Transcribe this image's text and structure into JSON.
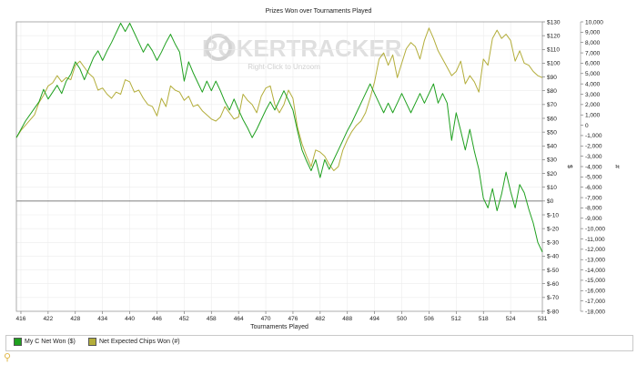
{
  "chart_data": {
    "type": "line",
    "title": "Prizes Won over Tournaments Played",
    "xlabel": "Tournaments Played",
    "ylabel_left": "$",
    "ylabel_right": "#",
    "watermark": {
      "brand": "POKERTRACKER",
      "hint": "Right-Click to Unzoom"
    },
    "x_ticks": [
      416,
      422,
      428,
      434,
      440,
      446,
      452,
      458,
      464,
      470,
      476,
      482,
      488,
      494,
      500,
      506,
      512,
      518,
      524,
      531
    ],
    "xlim": [
      415,
      531
    ],
    "y_left_ticks": [
      "$130",
      "$120",
      "$110",
      "$100",
      "$90",
      "$80",
      "$70",
      "$60",
      "$50",
      "$40",
      "$30",
      "$20",
      "$10",
      "$0",
      "$-10",
      "$-20",
      "$-30",
      "$-40",
      "$-50",
      "$-60",
      "$-70",
      "$-80"
    ],
    "y_left_range": [
      -80,
      130
    ],
    "y_right_ticks": [
      "10,000",
      "9,000",
      "8,000",
      "7,000",
      "6,000",
      "5,000",
      "4,000",
      "3,000",
      "2,000",
      "1,000",
      "0",
      "-1,000",
      "-2,000",
      "-3,000",
      "-4,000",
      "-5,000",
      "-6,000",
      "-7,000",
      "-8,000",
      "-9,000",
      "-10,000",
      "-11,000",
      "-12,000",
      "-13,000",
      "-14,000",
      "-15,000",
      "-16,000",
      "-17,000",
      "-18,000"
    ],
    "y_right_range": [
      -18000,
      10000
    ],
    "grid": true,
    "legend_placement": "bottom",
    "series": [
      {
        "name": "My C Net Won ($)",
        "axis": "left",
        "color": "#1fa01f",
        "points": [
          [
            415,
            46
          ],
          [
            417,
            58
          ],
          [
            420,
            72
          ],
          [
            421,
            81
          ],
          [
            422,
            74
          ],
          [
            423,
            79
          ],
          [
            424,
            84
          ],
          [
            425,
            78
          ],
          [
            426,
            87
          ],
          [
            427,
            92
          ],
          [
            428,
            101
          ],
          [
            429,
            96
          ],
          [
            430,
            88
          ],
          [
            431,
            96
          ],
          [
            432,
            104
          ],
          [
            433,
            109
          ],
          [
            434,
            102
          ],
          [
            435,
            109
          ],
          [
            436,
            115
          ],
          [
            437,
            122
          ],
          [
            438,
            129
          ],
          [
            439,
            123
          ],
          [
            440,
            129
          ],
          [
            441,
            122
          ],
          [
            442,
            115
          ],
          [
            443,
            108
          ],
          [
            444,
            114
          ],
          [
            445,
            109
          ],
          [
            446,
            102
          ],
          [
            447,
            108
          ],
          [
            448,
            115
          ],
          [
            449,
            121
          ],
          [
            450,
            114
          ],
          [
            451,
            108
          ],
          [
            452,
            87
          ],
          [
            453,
            101
          ],
          [
            454,
            93
          ],
          [
            455,
            86
          ],
          [
            456,
            79
          ],
          [
            457,
            87
          ],
          [
            458,
            80
          ],
          [
            459,
            87
          ],
          [
            460,
            80
          ],
          [
            461,
            72
          ],
          [
            462,
            66
          ],
          [
            463,
            74
          ],
          [
            464,
            66
          ],
          [
            465,
            59
          ],
          [
            466,
            53
          ],
          [
            467,
            46
          ],
          [
            468,
            52
          ],
          [
            469,
            59
          ],
          [
            470,
            66
          ],
          [
            471,
            72
          ],
          [
            472,
            66
          ],
          [
            473,
            73
          ],
          [
            474,
            80
          ],
          [
            475,
            73
          ],
          [
            476,
            66
          ],
          [
            477,
            51
          ],
          [
            478,
            37
          ],
          [
            479,
            29
          ],
          [
            480,
            22
          ],
          [
            481,
            30
          ],
          [
            482,
            17
          ],
          [
            483,
            30
          ],
          [
            484,
            23
          ],
          [
            485,
            30
          ],
          [
            486,
            37
          ],
          [
            487,
            44
          ],
          [
            488,
            51
          ],
          [
            489,
            57
          ],
          [
            490,
            64
          ],
          [
            491,
            71
          ],
          [
            492,
            78
          ],
          [
            493,
            85
          ],
          [
            494,
            78
          ],
          [
            495,
            71
          ],
          [
            496,
            64
          ],
          [
            497,
            71
          ],
          [
            498,
            64
          ],
          [
            499,
            71
          ],
          [
            500,
            78
          ],
          [
            501,
            71
          ],
          [
            502,
            64
          ],
          [
            503,
            71
          ],
          [
            504,
            78
          ],
          [
            505,
            71
          ],
          [
            506,
            78
          ],
          [
            507,
            85
          ],
          [
            508,
            71
          ],
          [
            509,
            78
          ],
          [
            510,
            71
          ],
          [
            511,
            44
          ],
          [
            512,
            64
          ],
          [
            513,
            51
          ],
          [
            514,
            37
          ],
          [
            515,
            52
          ],
          [
            516,
            36
          ],
          [
            517,
            23
          ],
          [
            518,
            2
          ],
          [
            519,
            -5
          ],
          [
            520,
            9
          ],
          [
            521,
            -7
          ],
          [
            522,
            5
          ],
          [
            523,
            21
          ],
          [
            524,
            7
          ],
          [
            525,
            -5
          ],
          [
            526,
            12
          ],
          [
            527,
            6
          ],
          [
            528,
            -6
          ],
          [
            529,
            -16
          ],
          [
            530,
            -30
          ],
          [
            531,
            -37
          ]
        ]
      },
      {
        "name": "Net Expected Chips Won (#)",
        "axis": "right",
        "color": "#b3ad3a",
        "points": [
          [
            415,
            -1200
          ],
          [
            416,
            -500
          ],
          [
            417,
            0
          ],
          [
            418,
            500
          ],
          [
            419,
            1000
          ],
          [
            420,
            2200
          ],
          [
            421,
            2900
          ],
          [
            422,
            3800
          ],
          [
            423,
            4100
          ],
          [
            424,
            4800
          ],
          [
            425,
            4200
          ],
          [
            426,
            4600
          ],
          [
            427,
            4400
          ],
          [
            428,
            5800
          ],
          [
            429,
            6200
          ],
          [
            430,
            5600
          ],
          [
            431,
            5000
          ],
          [
            432,
            4600
          ],
          [
            433,
            3400
          ],
          [
            434,
            3600
          ],
          [
            435,
            3000
          ],
          [
            436,
            2600
          ],
          [
            437,
            3200
          ],
          [
            438,
            3000
          ],
          [
            439,
            4400
          ],
          [
            440,
            4200
          ],
          [
            441,
            3200
          ],
          [
            442,
            3400
          ],
          [
            443,
            2600
          ],
          [
            444,
            2000
          ],
          [
            445,
            1800
          ],
          [
            446,
            900
          ],
          [
            447,
            2600
          ],
          [
            448,
            1800
          ],
          [
            449,
            3800
          ],
          [
            450,
            3400
          ],
          [
            451,
            3200
          ],
          [
            452,
            2400
          ],
          [
            453,
            2800
          ],
          [
            454,
            1800
          ],
          [
            455,
            2000
          ],
          [
            456,
            1400
          ],
          [
            457,
            1000
          ],
          [
            458,
            600
          ],
          [
            459,
            400
          ],
          [
            460,
            800
          ],
          [
            461,
            1800
          ],
          [
            462,
            1200
          ],
          [
            463,
            600
          ],
          [
            464,
            800
          ],
          [
            465,
            3000
          ],
          [
            466,
            2400
          ],
          [
            467,
            2000
          ],
          [
            468,
            1200
          ],
          [
            469,
            2800
          ],
          [
            470,
            3600
          ],
          [
            471,
            3800
          ],
          [
            472,
            2000
          ],
          [
            473,
            1200
          ],
          [
            474,
            2000
          ],
          [
            475,
            3400
          ],
          [
            476,
            2600
          ],
          [
            477,
            -200
          ],
          [
            478,
            -1800
          ],
          [
            479,
            -3000
          ],
          [
            480,
            -4000
          ],
          [
            481,
            -2400
          ],
          [
            482,
            -2600
          ],
          [
            483,
            -3000
          ],
          [
            484,
            -3800
          ],
          [
            485,
            -4400
          ],
          [
            486,
            -4000
          ],
          [
            487,
            -2400
          ],
          [
            488,
            -1400
          ],
          [
            489,
            -600
          ],
          [
            490,
            0
          ],
          [
            491,
            400
          ],
          [
            492,
            1200
          ],
          [
            493,
            2600
          ],
          [
            494,
            4200
          ],
          [
            495,
            6400
          ],
          [
            496,
            7000
          ],
          [
            497,
            5800
          ],
          [
            498,
            6800
          ],
          [
            499,
            4600
          ],
          [
            500,
            6000
          ],
          [
            501,
            7400
          ],
          [
            502,
            8000
          ],
          [
            503,
            7600
          ],
          [
            504,
            6400
          ],
          [
            505,
            8200
          ],
          [
            506,
            9400
          ],
          [
            507,
            8400
          ],
          [
            508,
            7200
          ],
          [
            509,
            6400
          ],
          [
            510,
            5600
          ],
          [
            511,
            4800
          ],
          [
            512,
            5200
          ],
          [
            513,
            6200
          ],
          [
            514,
            4000
          ],
          [
            515,
            4800
          ],
          [
            516,
            4200
          ],
          [
            517,
            3200
          ],
          [
            518,
            6400
          ],
          [
            519,
            5800
          ],
          [
            520,
            8400
          ],
          [
            521,
            9200
          ],
          [
            522,
            8400
          ],
          [
            523,
            8800
          ],
          [
            524,
            8200
          ],
          [
            525,
            6200
          ],
          [
            526,
            7200
          ],
          [
            527,
            6000
          ],
          [
            528,
            5800
          ],
          [
            529,
            5200
          ],
          [
            530,
            4800
          ],
          [
            531,
            4600
          ]
        ]
      }
    ]
  }
}
